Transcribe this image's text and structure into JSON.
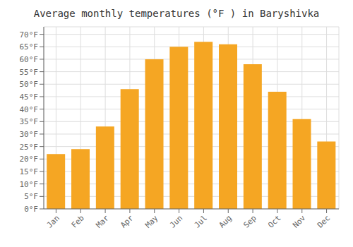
{
  "chart_data": {
    "type": "bar",
    "title": "Average monthly temperatures (°F ) in Baryshivka",
    "categories": [
      "Jan",
      "Feb",
      "Mar",
      "Apr",
      "May",
      "Jun",
      "Jul",
      "Aug",
      "Sep",
      "Oct",
      "Nov",
      "Dec"
    ],
    "values": [
      22,
      24,
      33,
      48,
      60,
      65,
      67,
      66,
      58,
      47,
      36,
      27
    ],
    "color": "#F5A623",
    "ylim": [
      0,
      73
    ],
    "yticks": [
      {
        "value": 0,
        "label": "0°F"
      },
      {
        "value": 5,
        "label": "5°F"
      },
      {
        "value": 10,
        "label": "10°F"
      },
      {
        "value": 15,
        "label": "15°F"
      },
      {
        "value": 20,
        "label": "20°F"
      },
      {
        "value": 25,
        "label": "25°F"
      },
      {
        "value": 30,
        "label": "30°F"
      },
      {
        "value": 35,
        "label": "35°F"
      },
      {
        "value": 40,
        "label": "40°F"
      },
      {
        "value": 45,
        "label": "45°F"
      },
      {
        "value": 50,
        "label": "50°F"
      },
      {
        "value": 55,
        "label": "55°F"
      },
      {
        "value": 60,
        "label": "60°F"
      },
      {
        "value": 65,
        "label": "65°F"
      },
      {
        "value": 70,
        "label": "70°F"
      }
    ],
    "grid": true
  }
}
